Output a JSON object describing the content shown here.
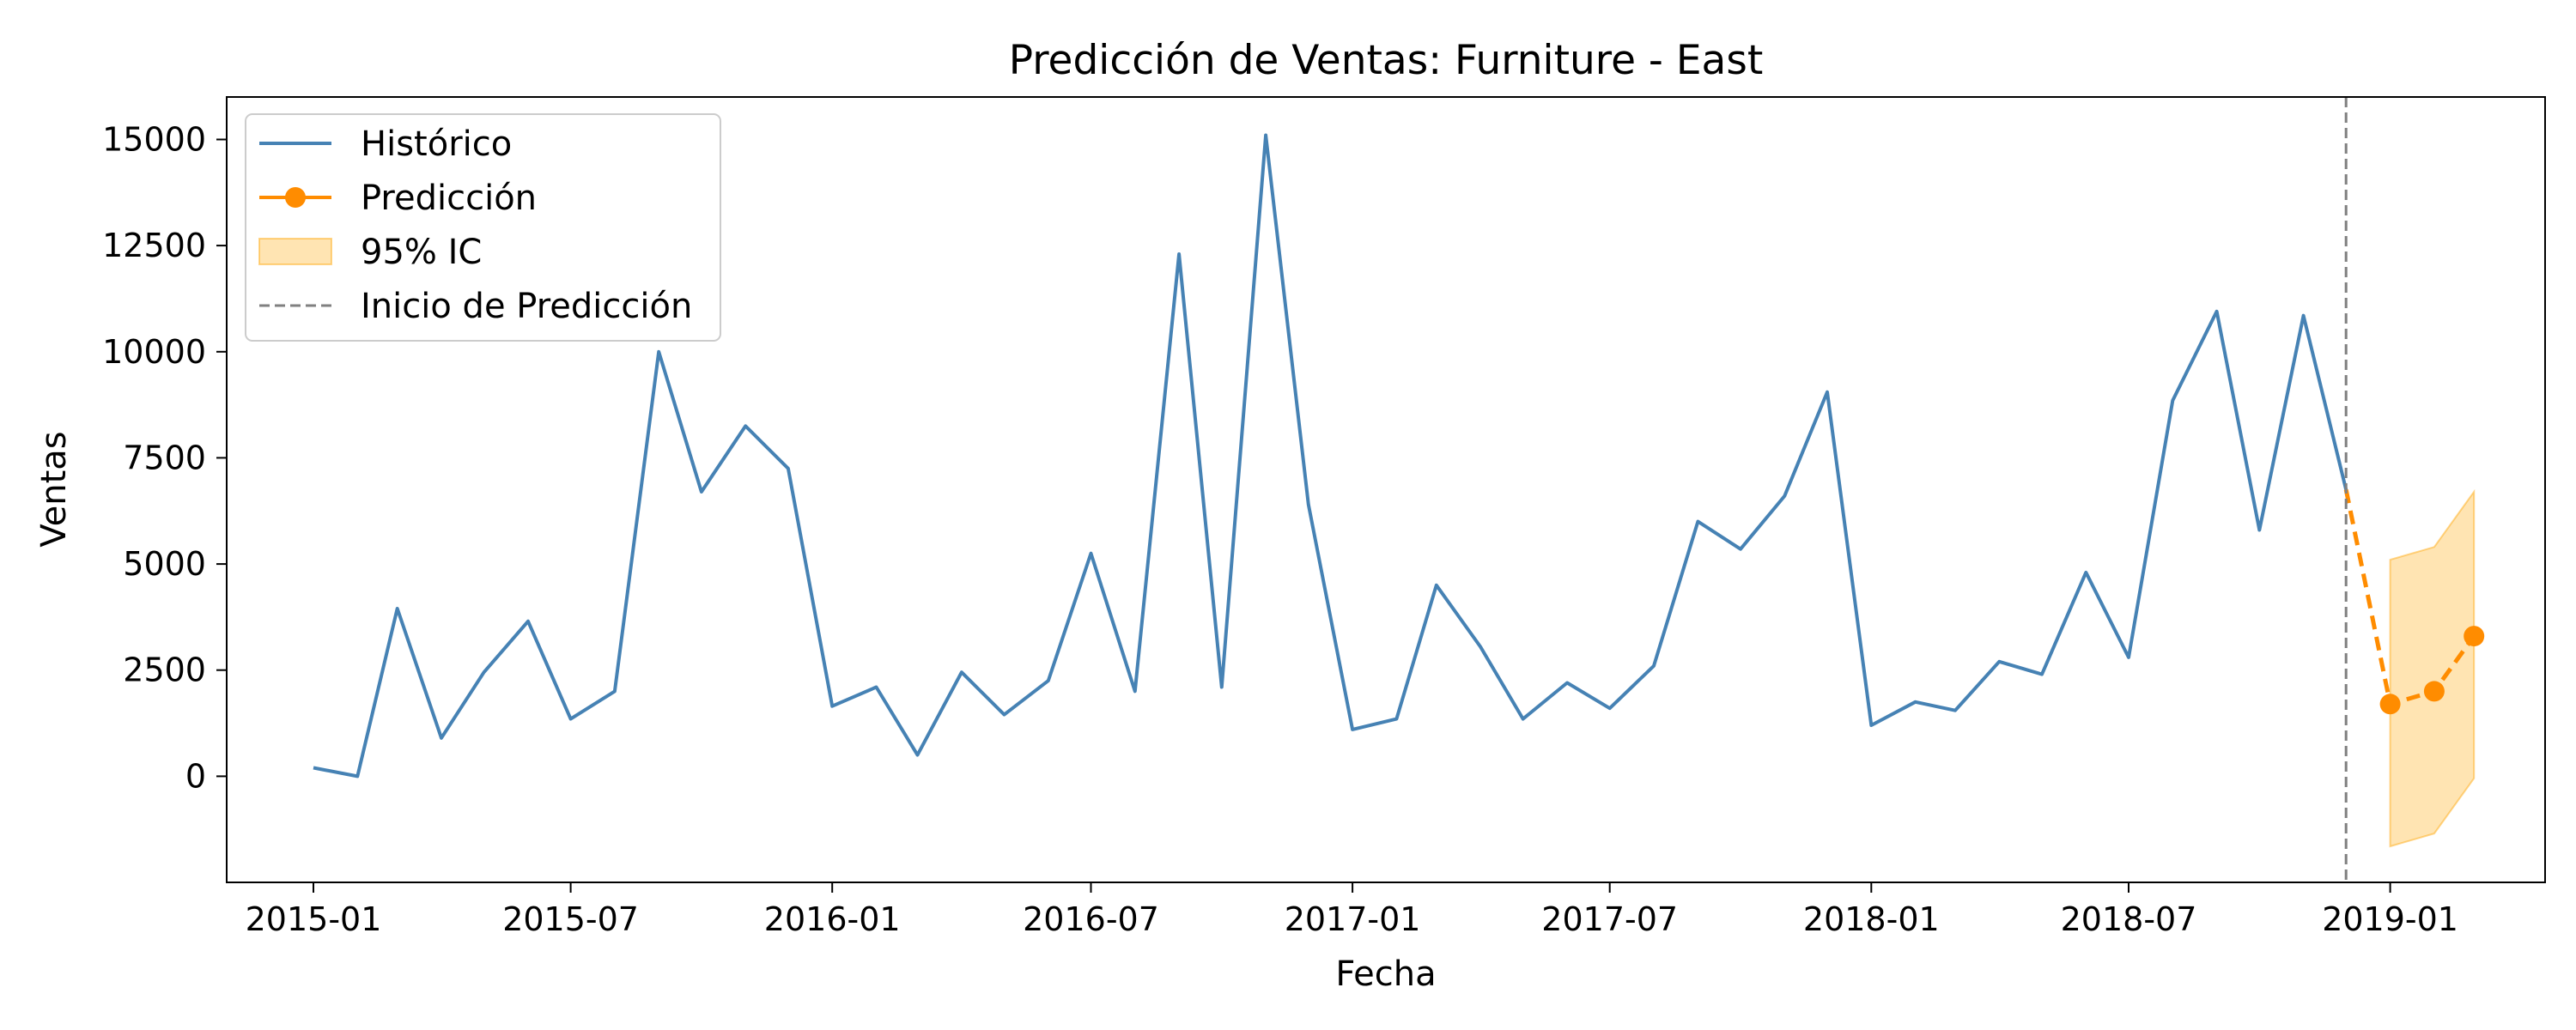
{
  "chart_data": {
    "type": "line",
    "title": "Predicción de Ventas: Furniture - East",
    "xlabel": "Fecha",
    "ylabel": "Ventas",
    "xlim": [
      "2014-11-01",
      "2019-04-20"
    ],
    "ylim": [
      -2500,
      16000
    ],
    "x_ticks": [
      "2015-01",
      "2015-07",
      "2016-01",
      "2016-07",
      "2017-01",
      "2017-07",
      "2018-01",
      "2018-07",
      "2019-01"
    ],
    "y_ticks": [
      0,
      2500,
      5000,
      7500,
      10000,
      12500,
      15000
    ],
    "grid": false,
    "legend_position": "upper-left",
    "colors": {
      "historical": "#4682b4",
      "forecast": "#ff8c00",
      "ci_fill": "#ffa500",
      "vline": "#808080"
    },
    "series": [
      {
        "name": "Histórico",
        "style": "solid",
        "x": [
          "2015-01",
          "2015-02",
          "2015-03",
          "2015-04",
          "2015-05",
          "2015-06",
          "2015-07",
          "2015-08",
          "2015-09",
          "2015-10",
          "2015-11",
          "2015-12",
          "2016-01",
          "2016-02",
          "2016-03",
          "2016-04",
          "2016-05",
          "2016-06",
          "2016-07",
          "2016-08",
          "2016-09",
          "2016-10",
          "2016-11",
          "2016-12",
          "2017-01",
          "2017-02",
          "2017-03",
          "2017-04",
          "2017-05",
          "2017-06",
          "2017-07",
          "2017-08",
          "2017-09",
          "2017-10",
          "2017-11",
          "2017-12",
          "2018-01",
          "2018-02",
          "2018-03",
          "2018-04",
          "2018-05",
          "2018-06",
          "2018-07",
          "2018-08",
          "2018-09",
          "2018-10",
          "2018-11",
          "2018-12"
        ],
        "values": [
          200,
          0,
          3950,
          900,
          2450,
          3650,
          1350,
          2000,
          10000,
          6700,
          8250,
          7250,
          1650,
          2100,
          500,
          2450,
          1450,
          2250,
          5250,
          2000,
          12300,
          2100,
          15100,
          6400,
          1100,
          1350,
          4500,
          3050,
          1350,
          2200,
          1600,
          2600,
          6000,
          5350,
          6600,
          9050,
          1200,
          1750,
          1550,
          2700,
          2400,
          4800,
          2800,
          8850,
          10950,
          5800,
          10850,
          6750
        ]
      },
      {
        "name": "Predicción",
        "style": "dashed-markers",
        "x": [
          "2018-12",
          "2019-01",
          "2019-02",
          "2019-03"
        ],
        "values": [
          6750,
          1700,
          2000,
          3300
        ]
      }
    ],
    "confidence_interval": {
      "name": "95% IC",
      "x": [
        "2019-01",
        "2019-02",
        "2019-03"
      ],
      "lower": [
        -1650,
        -1350,
        -50
      ],
      "upper": [
        5100,
        5400,
        6700
      ]
    },
    "vline": {
      "name": "Inicio de Predicción",
      "x": "2018-12"
    }
  }
}
